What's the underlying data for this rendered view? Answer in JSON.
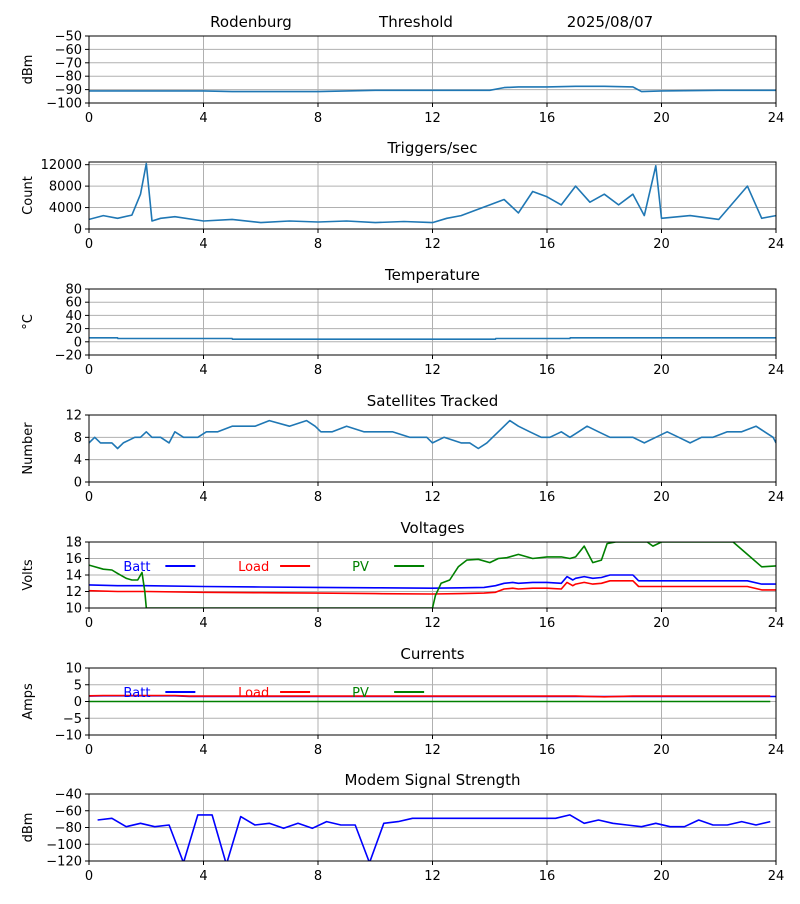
{
  "header": {
    "station": "Rodenburg",
    "mode": "Threshold",
    "date": "2025/08/07"
  },
  "colors": {
    "default_series": "#1f77b4",
    "batt": "#0000ff",
    "load": "#ff0000",
    "pv": "#008000",
    "grid": "#b0b0b0"
  },
  "chart_data": [
    {
      "id": "noise",
      "type": "line",
      "title": "",
      "xlabel": "",
      "ylabel": "dBm",
      "xlim": [
        0,
        24
      ],
      "ylim": [
        -100,
        -50
      ],
      "xticks": [
        0,
        4,
        8,
        12,
        16,
        20,
        24
      ],
      "yticks": [
        -100,
        -90,
        -80,
        -70,
        -60,
        -50
      ],
      "grid": true,
      "series": [
        {
          "color": "#1f77b4",
          "x": [
            0,
            2,
            4,
            5,
            6,
            8,
            9,
            10,
            12,
            13,
            14,
            14.5,
            15,
            16,
            17,
            18,
            19,
            19.3,
            20,
            22,
            24
          ],
          "y": [
            -91,
            -91,
            -91,
            -91.5,
            -91.5,
            -91.5,
            -91,
            -90.5,
            -90.5,
            -90.5,
            -90.5,
            -88.5,
            -88,
            -88,
            -87.5,
            -87.5,
            -88,
            -91.5,
            -91,
            -90.5,
            -90.5
          ]
        }
      ]
    },
    {
      "id": "triggers",
      "type": "line",
      "title": "Triggers/sec",
      "xlabel": "",
      "ylabel": "Count",
      "xlim": [
        0,
        24
      ],
      "ylim": [
        0,
        12500
      ],
      "xticks": [
        0,
        4,
        8,
        12,
        16,
        20,
        24
      ],
      "yticks": [
        0,
        4000,
        8000,
        12000
      ],
      "grid": true,
      "series": [
        {
          "color": "#1f77b4",
          "x": [
            0,
            0.5,
            1,
            1.5,
            1.8,
            2,
            2.2,
            2.5,
            3,
            4,
            5,
            6,
            7,
            8,
            9,
            10,
            11,
            12,
            12.5,
            13,
            13.5,
            14,
            14.5,
            15,
            15.5,
            16,
            16.5,
            17,
            17.5,
            18,
            18.5,
            19,
            19.4,
            19.8,
            20,
            21,
            22,
            23,
            23.5,
            24
          ],
          "y": [
            1800,
            2500,
            2000,
            2600,
            6500,
            12200,
            1500,
            2000,
            2300,
            1500,
            1800,
            1200,
            1500,
            1300,
            1500,
            1200,
            1400,
            1200,
            2000,
            2500,
            3500,
            4500,
            5500,
            3000,
            7000,
            6000,
            4500,
            8000,
            5000,
            6500,
            4500,
            6500,
            2500,
            11800,
            2000,
            2500,
            1800,
            8000,
            2000,
            2500
          ]
        }
      ]
    },
    {
      "id": "temperature",
      "type": "line",
      "title": "Temperature",
      "xlabel": "",
      "ylabel": "°C",
      "xlim": [
        0,
        24
      ],
      "ylim": [
        -20,
        80
      ],
      "xticks": [
        0,
        4,
        8,
        12,
        16,
        20,
        24
      ],
      "yticks": [
        -20,
        0,
        20,
        40,
        60,
        80
      ],
      "grid": true,
      "series": [
        {
          "color": "#1f77b4",
          "x": [
            0,
            1,
            1.01,
            5,
            5.01,
            14.2,
            14.21,
            16.8,
            16.81,
            24
          ],
          "y": [
            6,
            6,
            5,
            5,
            4,
            4,
            5,
            5,
            6,
            6
          ]
        }
      ]
    },
    {
      "id": "satellites",
      "type": "line",
      "title": "Satellites Tracked",
      "xlabel": "",
      "ylabel": "Number",
      "xlim": [
        0,
        24
      ],
      "ylim": [
        0,
        12
      ],
      "xticks": [
        0,
        4,
        8,
        12,
        16,
        20,
        24
      ],
      "yticks": [
        0,
        4,
        8,
        12
      ],
      "grid": true,
      "series": [
        {
          "color": "#1f77b4",
          "x": [
            0,
            0.2,
            0.4,
            0.8,
            1,
            1.2,
            1.6,
            1.8,
            2,
            2.2,
            2.5,
            2.8,
            3,
            3.3,
            3.8,
            4.1,
            4.5,
            5,
            5.4,
            5.8,
            6.3,
            7,
            7.6,
            7.9,
            8.1,
            8.5,
            9,
            9.6,
            10,
            10.6,
            11.2,
            11.8,
            12,
            12.4,
            13,
            13.3,
            13.6,
            13.9,
            14.1,
            14.3,
            14.7,
            15,
            15.4,
            15.8,
            16.1,
            16.5,
            16.8,
            17.1,
            17.4,
            17.8,
            18.2,
            18.7,
            19,
            19.4,
            19.8,
            20.2,
            20.6,
            21,
            21.4,
            21.8,
            22.3,
            22.8,
            23.3,
            23.6,
            23.9,
            24
          ],
          "y": [
            7,
            8,
            7,
            7,
            6,
            7,
            8,
            8,
            9,
            8,
            8,
            7,
            9,
            8,
            8,
            9,
            9,
            10,
            10,
            10,
            11,
            10,
            11,
            10,
            9,
            9,
            10,
            9,
            9,
            9,
            8,
            8,
            7,
            8,
            7,
            7,
            6,
            7,
            8,
            9,
            11,
            10,
            9,
            8,
            8,
            9,
            8,
            9,
            10,
            9,
            8,
            8,
            8,
            7,
            8,
            9,
            8,
            7,
            8,
            8,
            9,
            9,
            10,
            9,
            8,
            7
          ]
        }
      ]
    },
    {
      "id": "voltages",
      "type": "line",
      "title": "Voltages",
      "xlabel": "",
      "ylabel": "Volts",
      "xlim": [
        0,
        24
      ],
      "ylim": [
        10,
        18
      ],
      "xticks": [
        0,
        4,
        8,
        12,
        16,
        20,
        24
      ],
      "yticks": [
        10,
        12,
        14,
        16,
        18
      ],
      "grid": true,
      "legend": [
        {
          "label": "Batt",
          "color": "#0000ff"
        },
        {
          "label": "Load",
          "color": "#ff0000"
        },
        {
          "label": "PV",
          "color": "#008000"
        }
      ],
      "series": [
        {
          "name": "Batt",
          "color": "#0000ff",
          "x": [
            0,
            1,
            2,
            4,
            6,
            8,
            10,
            12,
            13,
            13.8,
            14.2,
            14.5,
            14.8,
            15,
            15.5,
            16,
            16.5,
            16.7,
            16.9,
            17,
            17.3,
            17.6,
            17.9,
            18.2,
            18.6,
            19,
            19.2,
            20,
            21,
            22,
            23,
            23.5,
            24
          ],
          "y": [
            12.8,
            12.7,
            12.7,
            12.6,
            12.55,
            12.5,
            12.45,
            12.4,
            12.45,
            12.5,
            12.7,
            13.0,
            13.1,
            13.0,
            13.1,
            13.1,
            13.0,
            13.8,
            13.4,
            13.6,
            13.8,
            13.6,
            13.7,
            14.0,
            14.0,
            14.0,
            13.3,
            13.3,
            13.3,
            13.3,
            13.3,
            12.9,
            12.9
          ]
        },
        {
          "name": "Load",
          "color": "#ff0000",
          "x": [
            0,
            1,
            2,
            4,
            6,
            8,
            10,
            12,
            13,
            13.8,
            14.2,
            14.5,
            14.8,
            15,
            15.5,
            16,
            16.5,
            16.7,
            16.9,
            17,
            17.3,
            17.6,
            17.9,
            18.2,
            18.6,
            19,
            19.2,
            20,
            21,
            22,
            23,
            23.5,
            24
          ],
          "y": [
            12.1,
            12.0,
            12.0,
            11.9,
            11.85,
            11.8,
            11.75,
            11.7,
            11.75,
            11.8,
            11.9,
            12.3,
            12.4,
            12.3,
            12.4,
            12.4,
            12.3,
            13.1,
            12.7,
            12.9,
            13.1,
            12.9,
            13.0,
            13.3,
            13.3,
            13.3,
            12.6,
            12.6,
            12.6,
            12.6,
            12.6,
            12.2,
            12.2
          ]
        },
        {
          "name": "PV",
          "color": "#008000",
          "x": [
            0,
            0.5,
            0.8,
            1,
            1.3,
            1.5,
            1.7,
            1.85,
            1.95,
            2.0,
            12.0,
            12.1,
            12.3,
            12.6,
            12.9,
            13.2,
            13.6,
            14.0,
            14.3,
            14.6,
            15.0,
            15.5,
            16.0,
            16.5,
            16.8,
            17.0,
            17.3,
            17.6,
            17.9,
            18.1,
            18.4,
            19.0,
            19.5,
            19.7,
            20.0,
            20.5,
            21.0,
            21.5,
            22.0,
            22.5,
            23.0,
            23.5,
            24.0
          ],
          "y": [
            15.2,
            14.7,
            14.6,
            14.2,
            13.6,
            13.4,
            13.4,
            14.3,
            12.0,
            10.0,
            10.0,
            11.5,
            13.0,
            13.4,
            15.0,
            15.8,
            15.9,
            15.5,
            16.0,
            16.1,
            16.5,
            16.0,
            16.2,
            16.2,
            16.0,
            16.2,
            17.5,
            15.5,
            15.8,
            17.8,
            18.0,
            18.0,
            18.0,
            17.5,
            18.0,
            18.0,
            18.0,
            18.0,
            18.0,
            18.0,
            16.5,
            15.0,
            15.1
          ]
        }
      ]
    },
    {
      "id": "currents",
      "type": "line",
      "title": "Currents",
      "xlabel": "",
      "ylabel": "Amps",
      "xlim": [
        0,
        24
      ],
      "ylim": [
        -10,
        10
      ],
      "xticks": [
        0,
        4,
        8,
        12,
        16,
        20,
        24
      ],
      "yticks": [
        -10,
        -5,
        0,
        5,
        10
      ],
      "grid": true,
      "legend": [
        {
          "label": "Batt",
          "color": "#0000ff"
        },
        {
          "label": "Load",
          "color": "#ff0000"
        },
        {
          "label": "PV",
          "color": "#008000"
        }
      ],
      "series": [
        {
          "name": "Batt",
          "color": "#0000ff",
          "x": [
            0,
            0.5,
            3,
            3.5,
            24
          ],
          "y": [
            1.6,
            1.7,
            1.7,
            1.5,
            1.5
          ]
        },
        {
          "name": "Load",
          "color": "#ff0000",
          "x": [
            0,
            0.5,
            3,
            3.5,
            17,
            18,
            19,
            23.8
          ],
          "y": [
            1.7,
            1.8,
            1.8,
            1.6,
            1.6,
            1.4,
            1.6,
            1.6
          ]
        },
        {
          "name": "PV",
          "color": "#008000",
          "x": [
            0,
            23.8
          ],
          "y": [
            0,
            0
          ]
        }
      ]
    },
    {
      "id": "modem",
      "type": "line",
      "title": "Modem Signal Strength",
      "xlabel": "",
      "ylabel": "dBm",
      "xlim": [
        0,
        24
      ],
      "ylim": [
        -120,
        -40
      ],
      "xticks": [
        0,
        4,
        8,
        12,
        16,
        20,
        24
      ],
      "yticks": [
        -120,
        -100,
        -80,
        -60,
        -40
      ],
      "grid": true,
      "series": [
        {
          "color": "#0000ff",
          "x": [
            0.3,
            0.8,
            1.3,
            1.8,
            2.3,
            2.8,
            3.3,
            3.8,
            4.3,
            4.8,
            5.3,
            5.8,
            6.3,
            6.8,
            7.3,
            7.8,
            8.3,
            8.8,
            9.3,
            9.8,
            10.3,
            10.8,
            11.3,
            11.8,
            12.3,
            12.8,
            13.3,
            13.8,
            14.3,
            14.8,
            15.3,
            15.8,
            16.3,
            16.8,
            17.3,
            17.8,
            18.3,
            18.8,
            19.3,
            19.8,
            20.3,
            20.8,
            21.3,
            21.8,
            22.3,
            22.8,
            23.3,
            23.8
          ],
          "y": [
            -71,
            -69,
            -79,
            -75,
            -79,
            -77,
            -122,
            -65,
            -65,
            -124,
            -67,
            -77,
            -75,
            -81,
            -75,
            -81,
            -73,
            -77,
            -77,
            -122,
            -75,
            -73,
            -69,
            -69,
            -69,
            -69,
            -69,
            -69,
            -69,
            -69,
            -69,
            -69,
            -69,
            -65,
            -75,
            -71,
            -75,
            -77,
            -79,
            -75,
            -79,
            -79,
            -71,
            -77,
            -77,
            -73,
            -77,
            -73
          ]
        }
      ]
    }
  ]
}
